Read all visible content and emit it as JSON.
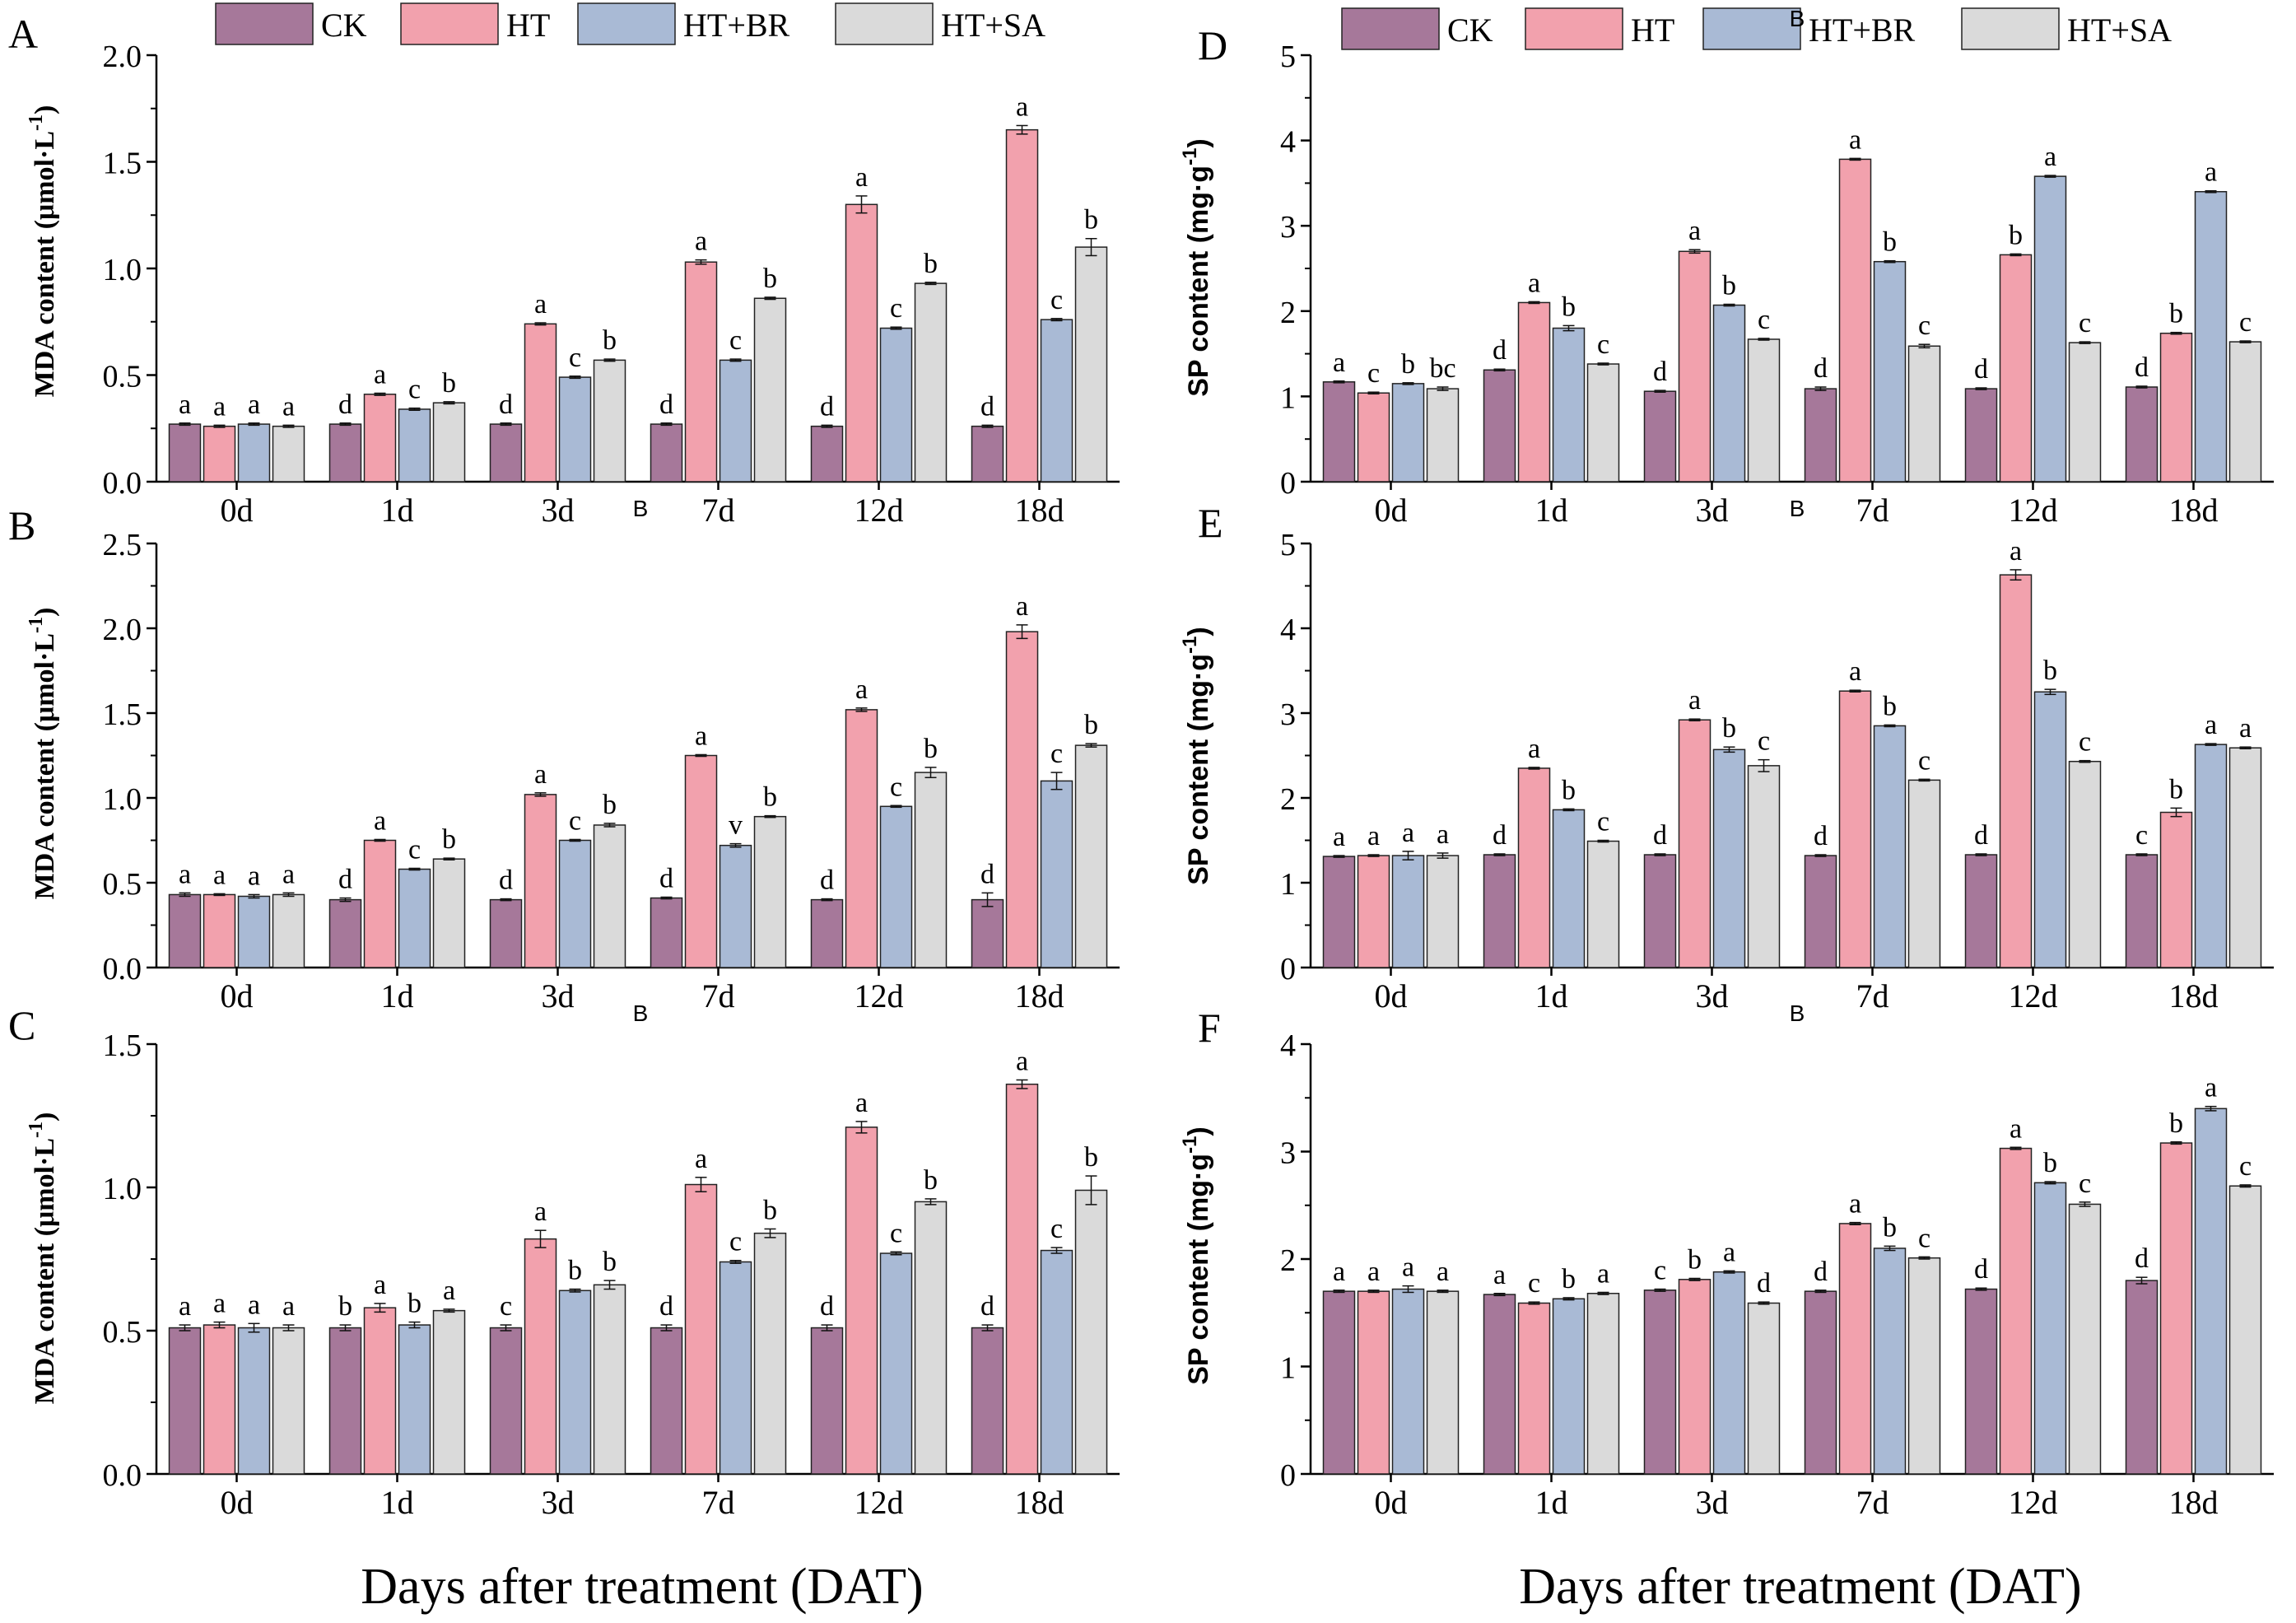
{
  "colors": {
    "CK": "#a6789a",
    "HT": "#f2a1ad",
    "HT+BR": "#a9bad5",
    "HT+SA": "#dadada"
  },
  "legend": [
    "CK",
    "HT",
    "HT+BR",
    "HT+SA"
  ],
  "xlabel": "Days after treatment (DAT)",
  "stray_marks": [
    "B",
    "B",
    "B",
    "B",
    "B"
  ],
  "chart_data": [
    {
      "panel": "A",
      "type": "bar",
      "ylabel": "MDA content (μmol·L",
      "ylabel_sup": "-1",
      "ylabel_close": ")",
      "ylim": [
        0,
        2.0
      ],
      "ticks": [
        "0.0",
        "0.5",
        "1.0",
        "1.5",
        "2.0"
      ],
      "categories": [
        "0d",
        "1d",
        "3d",
        "7d",
        "12d",
        "18d"
      ],
      "series": [
        {
          "name": "CK",
          "values": [
            0.27,
            0.27,
            0.27,
            0.27,
            0.26,
            0.26
          ],
          "err": [
            0.005,
            0.005,
            0.005,
            0.005,
            0.005,
            0.005
          ],
          "letters": [
            "a",
            "d",
            "d",
            "d",
            "d",
            "d"
          ]
        },
        {
          "name": "HT",
          "values": [
            0.26,
            0.41,
            0.74,
            1.03,
            1.3,
            1.65
          ],
          "err": [
            0.005,
            0.005,
            0.005,
            0.01,
            0.04,
            0.02
          ],
          "letters": [
            "a",
            "a",
            "a",
            "a",
            "a",
            "a"
          ]
        },
        {
          "name": "HT+BR",
          "values": [
            0.27,
            0.34,
            0.49,
            0.57,
            0.72,
            0.76
          ],
          "err": [
            0.005,
            0.005,
            0.005,
            0.005,
            0.005,
            0.005
          ],
          "letters": [
            "a",
            "c",
            "c",
            "c",
            "c",
            "c"
          ]
        },
        {
          "name": "HT+SA",
          "values": [
            0.26,
            0.37,
            0.57,
            0.86,
            0.93,
            1.1
          ],
          "err": [
            0.005,
            0.005,
            0.005,
            0.005,
            0.005,
            0.04
          ],
          "letters": [
            "a",
            "b",
            "b",
            "b",
            "b",
            "b"
          ]
        }
      ]
    },
    {
      "panel": "B",
      "type": "bar",
      "ylabel": "MDA content (μmol·L",
      "ylabel_sup": "-1",
      "ylabel_close": ")",
      "ylim": [
        0,
        2.5
      ],
      "ticks": [
        "0.0",
        "0.5",
        "1.0",
        "1.5",
        "2.0",
        "2.5"
      ],
      "categories": [
        "0d",
        "1d",
        "3d",
        "7d",
        "12d",
        "18d"
      ],
      "series": [
        {
          "name": "CK",
          "values": [
            0.43,
            0.4,
            0.4,
            0.41,
            0.4,
            0.4
          ],
          "err": [
            0.01,
            0.01,
            0.005,
            0.005,
            0.005,
            0.04
          ],
          "letters": [
            "a",
            "d",
            "d",
            "d",
            "d",
            "d"
          ]
        },
        {
          "name": "HT",
          "values": [
            0.43,
            0.75,
            1.02,
            1.25,
            1.52,
            1.98
          ],
          "err": [
            0.005,
            0.005,
            0.01,
            0.005,
            0.01,
            0.04
          ],
          "letters": [
            "a",
            "a",
            "a",
            "a",
            "a",
            "a"
          ]
        },
        {
          "name": "HT+BR",
          "values": [
            0.42,
            0.58,
            0.75,
            0.72,
            0.95,
            1.1
          ],
          "err": [
            0.01,
            0.005,
            0.005,
            0.01,
            0.005,
            0.05
          ],
          "letters": [
            "a",
            "c",
            "c",
            "v",
            "c",
            "c"
          ]
        },
        {
          "name": "HT+SA",
          "values": [
            0.43,
            0.64,
            0.84,
            0.89,
            1.15,
            1.31
          ],
          "err": [
            0.01,
            0.005,
            0.01,
            0.005,
            0.03,
            0.01
          ],
          "letters": [
            "a",
            "b",
            "b",
            "b",
            "b",
            "b"
          ]
        }
      ]
    },
    {
      "panel": "C",
      "type": "bar",
      "ylabel": "MDA content (μmol·L",
      "ylabel_sup": "-1",
      "ylabel_close": ")",
      "ylim": [
        0,
        1.5
      ],
      "ticks": [
        "0.0",
        "0.5",
        "1.0",
        "1.5"
      ],
      "categories": [
        "0d",
        "1d",
        "3d",
        "7d",
        "12d",
        "18d"
      ],
      "series": [
        {
          "name": "CK",
          "values": [
            0.51,
            0.51,
            0.51,
            0.51,
            0.51,
            0.51
          ],
          "err": [
            0.01,
            0.01,
            0.01,
            0.01,
            0.01,
            0.01
          ],
          "letters": [
            "a",
            "b",
            "c",
            "d",
            "d",
            "d"
          ]
        },
        {
          "name": "HT",
          "values": [
            0.52,
            0.58,
            0.82,
            1.01,
            1.21,
            1.36
          ],
          "err": [
            0.01,
            0.015,
            0.03,
            0.025,
            0.02,
            0.015
          ],
          "letters": [
            "a",
            "a",
            "a",
            "a",
            "a",
            "a"
          ]
        },
        {
          "name": "HT+BR",
          "values": [
            0.51,
            0.52,
            0.64,
            0.74,
            0.77,
            0.78
          ],
          "err": [
            0.015,
            0.01,
            0.005,
            0.005,
            0.005,
            0.01
          ],
          "letters": [
            "a",
            "b",
            "b",
            "c",
            "c",
            "c"
          ]
        },
        {
          "name": "HT+SA",
          "values": [
            0.51,
            0.57,
            0.66,
            0.84,
            0.95,
            0.99
          ],
          "err": [
            0.01,
            0.005,
            0.015,
            0.015,
            0.01,
            0.05
          ],
          "letters": [
            "a",
            "a",
            "b",
            "b",
            "b",
            "b"
          ]
        }
      ]
    },
    {
      "panel": "D",
      "type": "bar",
      "ylabel": "SP content (mg·g",
      "ylabel_sup": "-1",
      "ylabel_close": ")",
      "ylim": [
        0,
        5
      ],
      "ticks": [
        "0",
        "1",
        "2",
        "3",
        "4",
        "5"
      ],
      "categories": [
        "0d",
        "1d",
        "3d",
        "7d",
        "12d",
        "18d"
      ],
      "series": [
        {
          "name": "CK",
          "values": [
            1.17,
            1.31,
            1.06,
            1.09,
            1.09,
            1.11
          ],
          "err": [
            0.01,
            0.01,
            0.01,
            0.02,
            0.01,
            0.01
          ],
          "letters": [
            "a",
            "d",
            "d",
            "d",
            "d",
            "d"
          ]
        },
        {
          "name": "HT",
          "values": [
            1.04,
            2.1,
            2.7,
            3.78,
            2.66,
            1.74
          ],
          "err": [
            0.01,
            0.01,
            0.02,
            0.01,
            0.01,
            0.01
          ],
          "letters": [
            "c",
            "a",
            "a",
            "a",
            "b",
            "b"
          ]
        },
        {
          "name": "HT+BR",
          "values": [
            1.15,
            1.8,
            2.07,
            2.58,
            3.58,
            3.4
          ],
          "err": [
            0.01,
            0.03,
            0.01,
            0.01,
            0.01,
            0.01
          ],
          "letters": [
            "b",
            "b",
            "b",
            "b",
            "a",
            "a"
          ]
        },
        {
          "name": "HT+SA",
          "values": [
            1.09,
            1.38,
            1.67,
            1.59,
            1.63,
            1.64
          ],
          "err": [
            0.02,
            0.01,
            0.01,
            0.02,
            0.01,
            0.01
          ],
          "letters": [
            "bc",
            "c",
            "c",
            "c",
            "c",
            "c"
          ]
        }
      ]
    },
    {
      "panel": "E",
      "type": "bar",
      "ylabel": "SP content (mg·g",
      "ylabel_sup": "-1",
      "ylabel_close": ")",
      "ylim": [
        0,
        5
      ],
      "ticks": [
        "0",
        "1",
        "2",
        "3",
        "4",
        "5"
      ],
      "categories": [
        "0d",
        "1d",
        "3d",
        "7d",
        "12d",
        "18d"
      ],
      "series": [
        {
          "name": "CK",
          "values": [
            1.31,
            1.33,
            1.33,
            1.32,
            1.33,
            1.33
          ],
          "err": [
            0.01,
            0.01,
            0.01,
            0.01,
            0.01,
            0.01
          ],
          "letters": [
            "a",
            "d",
            "d",
            "d",
            "d",
            "c"
          ]
        },
        {
          "name": "HT",
          "values": [
            1.32,
            2.35,
            2.92,
            3.26,
            4.63,
            1.83
          ],
          "err": [
            0.01,
            0.01,
            0.01,
            0.01,
            0.06,
            0.05
          ],
          "letters": [
            "a",
            "a",
            "a",
            "a",
            "a",
            "b"
          ]
        },
        {
          "name": "HT+BR",
          "values": [
            1.32,
            1.86,
            2.57,
            2.85,
            3.25,
            2.63
          ],
          "err": [
            0.05,
            0.01,
            0.03,
            0.01,
            0.03,
            0.01
          ],
          "letters": [
            "a",
            "b",
            "b",
            "b",
            "b",
            "a"
          ]
        },
        {
          "name": "HT+SA",
          "values": [
            1.32,
            1.49,
            2.38,
            2.21,
            2.43,
            2.59
          ],
          "err": [
            0.03,
            0.01,
            0.07,
            0.01,
            0.01,
            0.01
          ],
          "letters": [
            "a",
            "c",
            "c",
            "c",
            "c",
            "a"
          ]
        }
      ]
    },
    {
      "panel": "F",
      "type": "bar",
      "ylabel": "SP content (mg·g",
      "ylabel_sup": "-1",
      "ylabel_close": ")",
      "ylim": [
        0,
        4
      ],
      "ticks": [
        "0",
        "1",
        "2",
        "3",
        "4"
      ],
      "categories": [
        "0d",
        "1d",
        "3d",
        "7d",
        "12d",
        "18d"
      ],
      "series": [
        {
          "name": "CK",
          "values": [
            1.7,
            1.67,
            1.71,
            1.7,
            1.72,
            1.8
          ],
          "err": [
            0.01,
            0.01,
            0.01,
            0.01,
            0.01,
            0.03
          ],
          "letters": [
            "a",
            "a",
            "c",
            "d",
            "d",
            "d"
          ]
        },
        {
          "name": "HT",
          "values": [
            1.7,
            1.59,
            1.81,
            2.33,
            3.03,
            3.08
          ],
          "err": [
            0.01,
            0.01,
            0.01,
            0.01,
            0.01,
            0.01
          ],
          "letters": [
            "a",
            "c",
            "b",
            "a",
            "a",
            "b"
          ]
        },
        {
          "name": "HT+BR",
          "values": [
            1.72,
            1.63,
            1.88,
            2.1,
            2.71,
            3.4
          ],
          "err": [
            0.03,
            0.01,
            0.01,
            0.02,
            0.01,
            0.02
          ],
          "letters": [
            "a",
            "b",
            "a",
            "b",
            "b",
            "a"
          ]
        },
        {
          "name": "HT+SA",
          "values": [
            1.7,
            1.68,
            1.59,
            2.01,
            2.51,
            2.68
          ],
          "err": [
            0.01,
            0.01,
            0.01,
            0.01,
            0.02,
            0.01
          ],
          "letters": [
            "a",
            "a",
            "d",
            "c",
            "c",
            "c"
          ]
        }
      ]
    }
  ]
}
